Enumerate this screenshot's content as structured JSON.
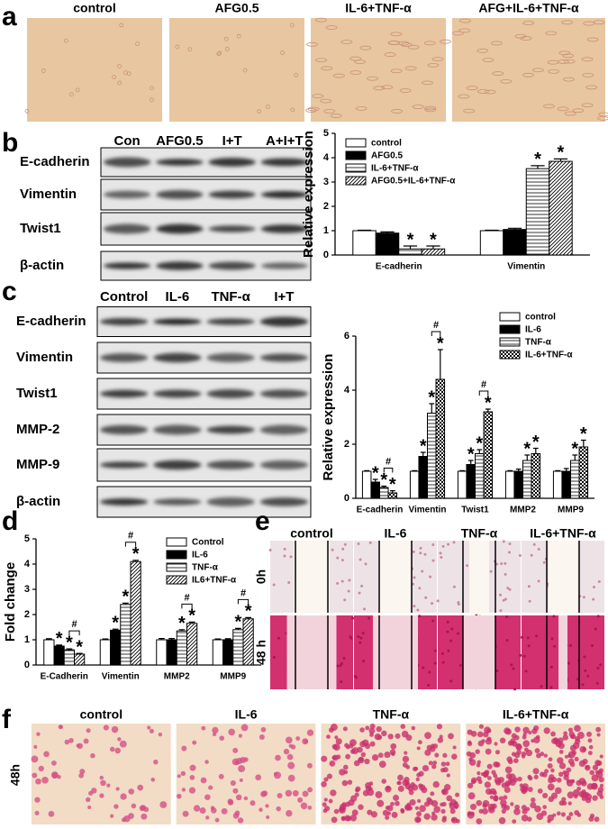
{
  "panels": {
    "a": {
      "label": "a",
      "headers": [
        "control",
        "AFG0.5",
        "IL-6+TNF-α",
        "AFG+IL-6+TNF-α"
      ]
    },
    "b": {
      "label": "b",
      "blot_headers": [
        "Con",
        "AFG0.5",
        "I+T",
        "A+I+T"
      ],
      "blot_rows": [
        "E-cadherin",
        "Vimentin",
        "Twist1",
        "β-actin"
      ]
    },
    "c": {
      "label": "c",
      "blot_headers": [
        "Control",
        "IL-6",
        "TNF-α",
        "I+T"
      ],
      "blot_rows": [
        "E-cadherin",
        "Vimentin",
        "Twist1",
        "MMP-2",
        "MMP-9",
        "β-actin"
      ]
    },
    "d": {
      "label": "d"
    },
    "e": {
      "label": "e",
      "headers": [
        "control",
        "IL-6",
        "TNF-α",
        "IL-6+TNF-α"
      ],
      "rows": [
        "0h",
        "48 h"
      ]
    },
    "f": {
      "label": "f",
      "headers": [
        "control",
        "IL-6",
        "TNF-α",
        "IL-6+TNF-α"
      ],
      "rows": [
        "48h"
      ]
    }
  },
  "chart_data": [
    {
      "type": "bar",
      "y_label": "Relative expression",
      "categories": [
        "E-cadherin",
        "Vimentin"
      ],
      "series": [
        {
          "name": "control",
          "color": "#ffffff",
          "pattern": "solid",
          "values": [
            1,
            1
          ],
          "errors": [
            0.02,
            0.02
          ],
          "markers": [
            null,
            null
          ]
        },
        {
          "name": "AFG0.5",
          "color": "#000000",
          "pattern": "solid",
          "values": [
            0.9,
            1.05
          ],
          "errors": [
            0.05,
            0.05
          ],
          "markers": [
            null,
            null
          ]
        },
        {
          "name": "IL-6+TNF-α",
          "color": "#ffffff",
          "pattern": "hlines",
          "values": [
            0.25,
            3.55
          ],
          "errors": [
            0.12,
            0.12
          ],
          "markers": [
            "*",
            "*"
          ]
        },
        {
          "name": "AFG0.5+IL-6+TNF-α",
          "color": "#ffffff",
          "pattern": "diag",
          "values": [
            0.25,
            3.85
          ],
          "errors": [
            0.12,
            0.1
          ],
          "markers": [
            "*",
            "*"
          ]
        }
      ],
      "ylim": [
        0,
        5
      ],
      "yticks": [
        0,
        1,
        2,
        3,
        4,
        5
      ],
      "legend": "upper left",
      "brackets": []
    },
    {
      "type": "bar",
      "y_label": "Relative expression",
      "categories": [
        "E-cadherin",
        "Vimentin",
        "Twist1",
        "MMP2",
        "MMP9"
      ],
      "series": [
        {
          "name": "control",
          "color": "#ffffff",
          "pattern": "solid",
          "values": [
            1,
            1,
            1,
            1,
            1
          ],
          "errors": [
            0.02,
            0.02,
            0.02,
            0.02,
            0.02
          ],
          "markers": [
            null,
            null,
            null,
            null,
            null
          ]
        },
        {
          "name": "IL-6",
          "color": "#000000",
          "pattern": "solid",
          "values": [
            0.6,
            1.55,
            1.25,
            1,
            1
          ],
          "errors": [
            0.1,
            0.15,
            0.15,
            0.08,
            0.1
          ],
          "markers": [
            "*",
            "*",
            "*",
            null,
            null
          ]
        },
        {
          "name": "TNF-α",
          "color": "#ffffff",
          "pattern": "hlines",
          "values": [
            0.4,
            3.15,
            1.65,
            1.4,
            1.4
          ],
          "errors": [
            0.05,
            0.35,
            0.15,
            0.2,
            0.2
          ],
          "markers": [
            "*",
            "*",
            "*",
            "*",
            "*"
          ]
        },
        {
          "name": "IL-6+TNF-α",
          "color": "#ffffff",
          "pattern": "checker",
          "values": [
            0.2,
            4.4,
            3.2,
            1.65,
            1.9
          ],
          "errors": [
            0.08,
            1.1,
            0.1,
            0.2,
            0.25
          ],
          "markers": [
            "*",
            "*",
            "*",
            "*",
            "*"
          ]
        }
      ],
      "ylim": [
        0,
        6
      ],
      "yticks": [
        0,
        2,
        4,
        6
      ],
      "legend": "upper right",
      "brackets": [
        {
          "category": "E-cadherin",
          "series": [
            "TNF-α",
            "IL-6+TNF-α"
          ],
          "label": "#"
        },
        {
          "category": "Vimentin",
          "series": [
            "TNF-α",
            "IL-6+TNF-α"
          ],
          "label": "#"
        },
        {
          "category": "Twist1",
          "series": [
            "TNF-α",
            "IL-6+TNF-α"
          ],
          "label": "#"
        }
      ]
    },
    {
      "type": "bar",
      "y_label": "Fold change",
      "categories": [
        "E-Cadherin",
        "Vimentin",
        "MMP2",
        "MMP9"
      ],
      "series": [
        {
          "name": "Control",
          "color": "#ffffff",
          "pattern": "solid",
          "values": [
            1,
            1,
            1,
            1
          ],
          "errors": [
            0.04,
            0.03,
            0.05,
            0.03
          ],
          "markers": [
            null,
            null,
            null,
            null
          ]
        },
        {
          "name": "IL-6",
          "color": "#000000",
          "pattern": "solid",
          "values": [
            0.75,
            1.38,
            1.0,
            1.0
          ],
          "errors": [
            0.04,
            0.04,
            0.05,
            0.04
          ],
          "markers": [
            "*",
            "*",
            null,
            null
          ]
        },
        {
          "name": "TNF-α",
          "color": "#ffffff",
          "pattern": "hlines",
          "values": [
            0.6,
            2.4,
            1.35,
            1.4
          ],
          "errors": [
            0.04,
            0.05,
            0.05,
            0.05
          ],
          "markers": [
            "*",
            "*",
            "*",
            "*"
          ]
        },
        {
          "name": "IL6+TNF-α",
          "color": "#ffffff",
          "pattern": "diag",
          "values": [
            0.43,
            4.1,
            1.65,
            1.83
          ],
          "errors": [
            0.03,
            0.05,
            0.05,
            0.05
          ],
          "markers": [
            "*",
            "*",
            "*",
            "*"
          ]
        }
      ],
      "ylim": [
        0,
        5
      ],
      "yticks": [
        0,
        1,
        2,
        3,
        4,
        5
      ],
      "legend": "upper right",
      "brackets": [
        {
          "category": "E-Cadherin",
          "series": [
            "TNF-α",
            "IL6+TNF-α"
          ],
          "label": "#"
        },
        {
          "category": "Vimentin",
          "series": [
            "TNF-α",
            "IL6+TNF-α"
          ],
          "label": "#"
        },
        {
          "category": "MMP2",
          "series": [
            "TNF-α",
            "IL6+TNF-α"
          ],
          "label": "#"
        },
        {
          "category": "MMP9",
          "series": [
            "TNF-α",
            "IL6+TNF-α"
          ],
          "label": "#"
        }
      ]
    }
  ]
}
